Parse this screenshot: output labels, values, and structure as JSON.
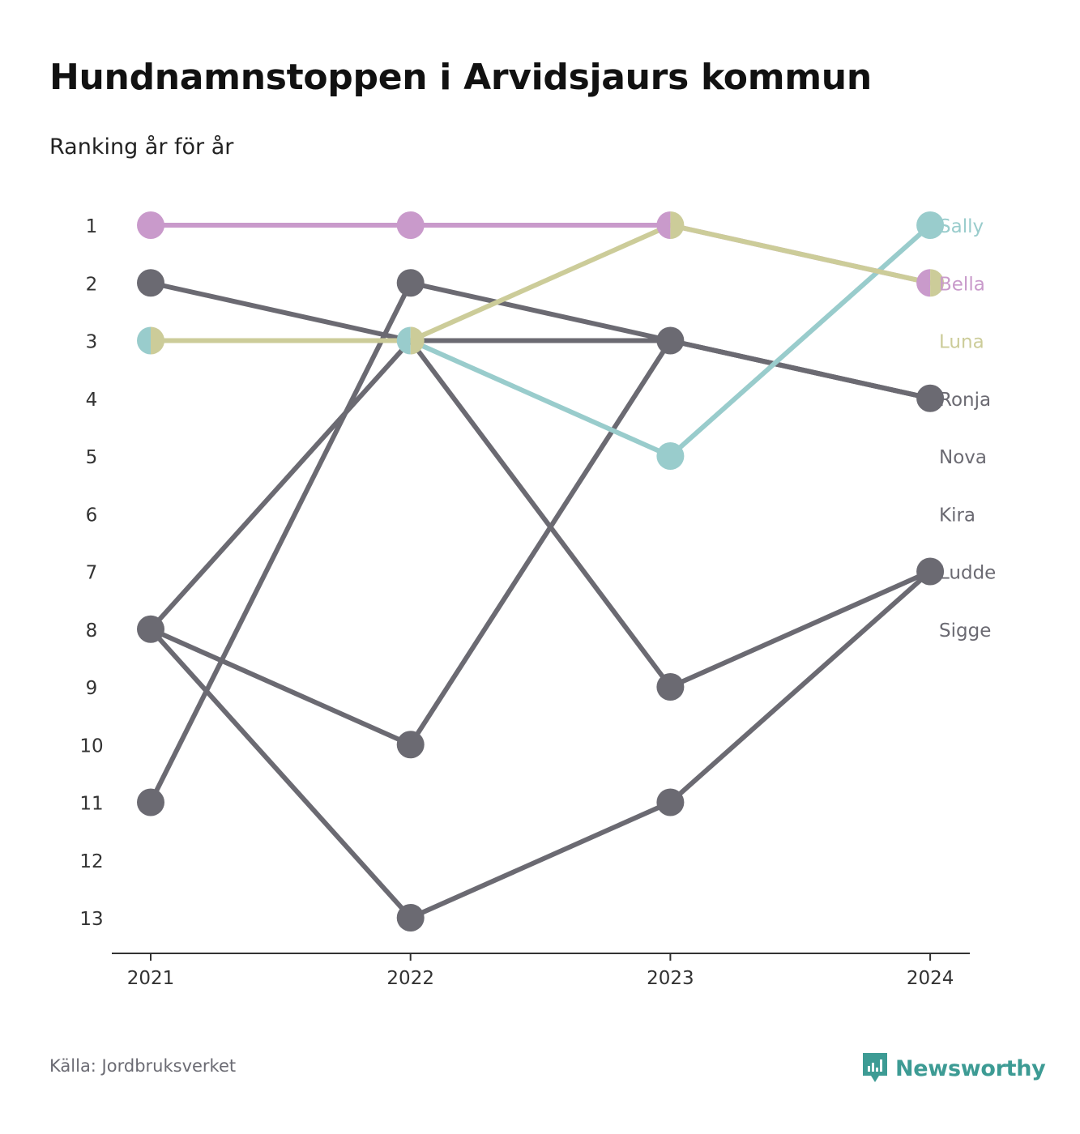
{
  "title": "Hundnamnstoppen i Arvidsjaurs kommun",
  "subtitle": "Ranking år för år",
  "source": "Källa: Jordbruksverket",
  "brand": "Newsworthy",
  "colors": {
    "Bella": "#c99acb",
    "Luna": "#cccc99",
    "Sally": "#99cccc",
    "other": "#6b6a72",
    "axis": "#333333",
    "brand": "#3d9b94"
  },
  "chart_data": {
    "type": "line",
    "title": "Hundnamnstoppen i Arvidsjaurs kommun",
    "subtitle": "Ranking år för år",
    "x": [
      "2021",
      "2022",
      "2023",
      "2024"
    ],
    "y_ticks": [
      "1",
      "2",
      "3",
      "4",
      "5",
      "6",
      "7",
      "8",
      "9",
      "10",
      "11",
      "12",
      "13"
    ],
    "ylim": [
      1,
      13
    ],
    "y_inverted": true,
    "legend_placement": "right",
    "series": [
      {
        "name": "Sally",
        "values": [
          3,
          3,
          5,
          1
        ]
      },
      {
        "name": "Bella",
        "values": [
          1,
          1,
          1,
          2
        ]
      },
      {
        "name": "Luna",
        "values": [
          3,
          3,
          1,
          2
        ]
      },
      {
        "name": "Ronja",
        "values": [
          2,
          3,
          3,
          4
        ]
      },
      {
        "name": "Nova",
        "values": [
          11,
          2,
          3,
          4
        ]
      },
      {
        "name": "Kira",
        "values": [
          8,
          3,
          9,
          7
        ]
      },
      {
        "name": "Ludde",
        "values": [
          8,
          10,
          3,
          4
        ]
      },
      {
        "name": "Sigge",
        "values": [
          8,
          13,
          11,
          7
        ]
      }
    ]
  }
}
